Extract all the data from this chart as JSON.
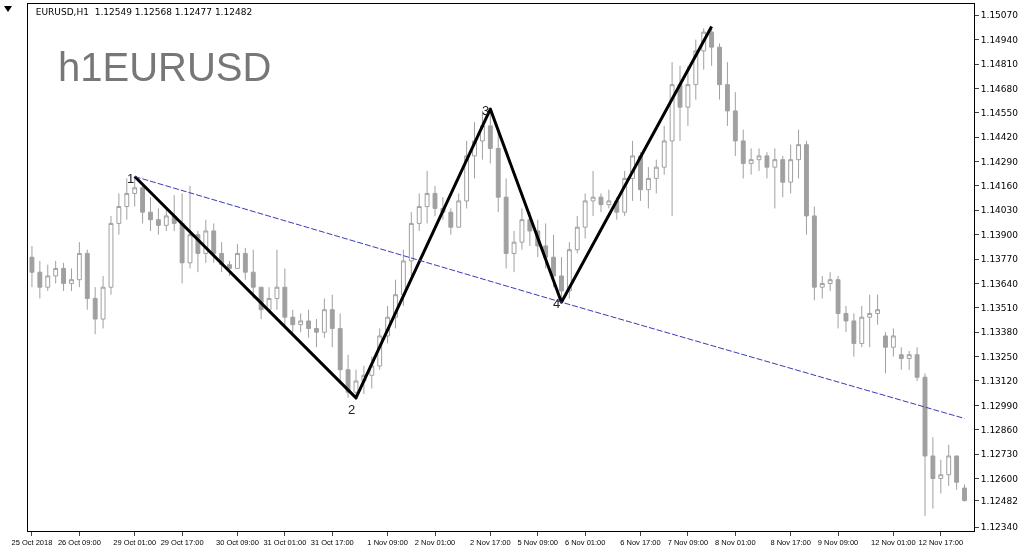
{
  "chart_data": {
    "type": "candlestick",
    "title": "EURUSD,H1  1.12549 1.12568 1.12477 1.12482",
    "color": "#a0a0a0",
    "categories": [
      "25 Oct 2018",
      null,
      null,
      null,
      null,
      null,
      "26 Oct 09:00",
      null,
      null,
      null,
      null,
      null,
      null,
      "29 Oct 01:00",
      null,
      null,
      null,
      null,
      null,
      "29 Oct 17:00",
      null,
      null,
      null,
      null,
      null,
      null,
      "30 Oct 09:00",
      null,
      null,
      null,
      null,
      null,
      "31 Oct 01:00",
      null,
      null,
      null,
      null,
      null,
      "31 Oct 17:00",
      null,
      null,
      null,
      null,
      null,
      null,
      "1 Nov 09:00",
      null,
      null,
      null,
      null,
      null,
      "2 Nov 01:00",
      null,
      null,
      null,
      null,
      null,
      null,
      "2 Nov 17:00",
      null,
      null,
      null,
      null,
      null,
      "5 Nov 09:00",
      null,
      null,
      null,
      null,
      null,
      "6 Nov 01:00",
      null,
      null,
      null,
      null,
      null,
      null,
      "6 Nov 17:00",
      null,
      null,
      null,
      null,
      null,
      "7 Nov 09:00",
      null,
      null,
      null,
      null,
      null,
      "8 Nov 01:00",
      null,
      null,
      null,
      null,
      null,
      null,
      "8 Nov 17:00",
      null,
      null,
      null,
      null,
      null,
      "9 Nov 09:00",
      null,
      null,
      null,
      null,
      null,
      null,
      "12 Nov 01:00",
      null,
      null,
      null,
      null,
      null,
      "12 Nov 17:00",
      null,
      null,
      null
    ],
    "ohlc": [
      [
        1.1378,
        1.1384,
        1.1362,
        1.137
      ],
      [
        1.137,
        1.1376,
        1.1356,
        1.1362
      ],
      [
        1.1362,
        1.1374,
        1.136,
        1.1368
      ],
      [
        1.1368,
        1.1376,
        1.1364,
        1.1372
      ],
      [
        1.1372,
        1.1375,
        1.136,
        1.1364
      ],
      [
        1.1364,
        1.1372,
        1.136,
        1.1366
      ],
      [
        1.1366,
        1.1386,
        1.1362,
        1.138
      ],
      [
        1.138,
        1.1382,
        1.135,
        1.1356
      ],
      [
        1.1356,
        1.1362,
        1.1337,
        1.1345
      ],
      [
        1.1345,
        1.1368,
        1.134,
        1.1362
      ],
      [
        1.1362,
        1.14,
        1.1358,
        1.1396
      ],
      [
        1.1396,
        1.1412,
        1.139,
        1.1405
      ],
      [
        1.1405,
        1.142,
        1.1398,
        1.1412
      ],
      [
        1.1412,
        1.1421,
        1.1405,
        1.1415
      ],
      [
        1.1415,
        1.1416,
        1.1396,
        1.1402
      ],
      [
        1.1402,
        1.141,
        1.1392,
        1.1398
      ],
      [
        1.1398,
        1.1404,
        1.139,
        1.1395
      ],
      [
        1.1395,
        1.1404,
        1.1392,
        1.14
      ],
      [
        1.14,
        1.1411,
        1.1392,
        1.1396
      ],
      [
        1.1396,
        1.1412,
        1.1364,
        1.1375
      ],
      [
        1.1375,
        1.1416,
        1.1372,
        1.139
      ],
      [
        1.139,
        1.1392,
        1.137,
        1.138
      ],
      [
        1.138,
        1.1398,
        1.1375,
        1.1392
      ],
      [
        1.1392,
        1.1396,
        1.1375,
        1.138
      ],
      [
        1.138,
        1.1386,
        1.137,
        1.1374
      ],
      [
        1.1374,
        1.1376,
        1.1368,
        1.1372
      ],
      [
        1.1372,
        1.1385,
        1.1372,
        1.138
      ],
      [
        1.138,
        1.1383,
        1.1366,
        1.137
      ],
      [
        1.137,
        1.1382,
        1.1356,
        1.1362
      ],
      [
        1.1362,
        1.1362,
        1.1345,
        1.135
      ],
      [
        1.135,
        1.1362,
        1.1348,
        1.1356
      ],
      [
        1.1356,
        1.1382,
        1.135,
        1.1362
      ],
      [
        1.1362,
        1.1372,
        1.134,
        1.1346
      ],
      [
        1.1346,
        1.135,
        1.1338,
        1.1342
      ],
      [
        1.1342,
        1.1348,
        1.1338,
        1.1344
      ],
      [
        1.1344,
        1.135,
        1.1335,
        1.134
      ],
      [
        1.134,
        1.1345,
        1.133,
        1.1338
      ],
      [
        1.1338,
        1.1356,
        1.1335,
        1.135
      ],
      [
        1.135,
        1.1358,
        1.133,
        1.134
      ],
      [
        1.134,
        1.1348,
        1.1312,
        1.1318
      ],
      [
        1.1318,
        1.1326,
        1.1303,
        1.1306
      ],
      [
        1.1306,
        1.1318,
        1.1302,
        1.1312
      ],
      [
        1.1312,
        1.132,
        1.1305,
        1.1315
      ],
      [
        1.1315,
        1.1325,
        1.1308,
        1.132
      ],
      [
        1.132,
        1.134,
        1.1318,
        1.1336
      ],
      [
        1.1336,
        1.1352,
        1.1332,
        1.1346
      ],
      [
        1.1346,
        1.1366,
        1.134,
        1.1358
      ],
      [
        1.1358,
        1.1382,
        1.1352,
        1.1376
      ],
      [
        1.1376,
        1.1402,
        1.1368,
        1.1396
      ],
      [
        1.1396,
        1.1412,
        1.1392,
        1.1405
      ],
      [
        1.1405,
        1.1424,
        1.1396,
        1.1412
      ],
      [
        1.1412,
        1.1416,
        1.14,
        1.1404
      ],
      [
        1.1404,
        1.141,
        1.1398,
        1.1402
      ],
      [
        1.1402,
        1.1404,
        1.139,
        1.1394
      ],
      [
        1.1394,
        1.1412,
        1.1394,
        1.1408
      ],
      [
        1.1408,
        1.144,
        1.1404,
        1.1432
      ],
      [
        1.1432,
        1.145,
        1.142,
        1.144
      ],
      [
        1.144,
        1.1456,
        1.143,
        1.1448
      ],
      [
        1.1448,
        1.1455,
        1.1428,
        1.1436
      ],
      [
        1.1436,
        1.1446,
        1.1402,
        1.141
      ],
      [
        1.141,
        1.142,
        1.1372,
        1.138
      ],
      [
        1.138,
        1.1392,
        1.137,
        1.1386
      ],
      [
        1.1386,
        1.1404,
        1.1382,
        1.1398
      ],
      [
        1.1398,
        1.1402,
        1.1384,
        1.1392
      ],
      [
        1.1392,
        1.1398,
        1.1378,
        1.1384
      ],
      [
        1.1384,
        1.1396,
        1.1372,
        1.1378
      ],
      [
        1.1378,
        1.139,
        1.1362,
        1.1368
      ],
      [
        1.1368,
        1.1378,
        1.1355,
        1.136
      ],
      [
        1.136,
        1.1386,
        1.1356,
        1.1382
      ],
      [
        1.1382,
        1.14,
        1.138,
        1.1394
      ],
      [
        1.1394,
        1.1412,
        1.1388,
        1.1408
      ],
      [
        1.1408,
        1.1424,
        1.14,
        1.141
      ],
      [
        1.141,
        1.1412,
        1.1402,
        1.1406
      ],
      [
        1.1406,
        1.1414,
        1.1404,
        1.1408
      ],
      [
        1.1408,
        1.141,
        1.1398,
        1.1402
      ],
      [
        1.1402,
        1.1424,
        1.14,
        1.142
      ],
      [
        1.142,
        1.144,
        1.1408,
        1.1432
      ],
      [
        1.1432,
        1.1434,
        1.1408,
        1.1414
      ],
      [
        1.1414,
        1.1426,
        1.1404,
        1.142
      ],
      [
        1.142,
        1.143,
        1.1412,
        1.1426
      ],
      [
        1.1426,
        1.1448,
        1.1422,
        1.144
      ],
      [
        1.144,
        1.1482,
        1.14,
        1.147
      ],
      [
        1.147,
        1.148,
        1.144,
        1.1458
      ],
      [
        1.1458,
        1.148,
        1.1448,
        1.147
      ],
      [
        1.147,
        1.1494,
        1.1462,
        1.1488
      ],
      [
        1.1488,
        1.15,
        1.1478,
        1.1498
      ],
      [
        1.1498,
        1.15,
        1.148,
        1.149
      ],
      [
        1.149,
        1.1492,
        1.1462,
        1.147
      ],
      [
        1.147,
        1.1482,
        1.1448,
        1.1456
      ],
      [
        1.1456,
        1.1466,
        1.1432,
        1.144
      ],
      [
        1.144,
        1.1446,
        1.142,
        1.1428
      ],
      [
        1.1428,
        1.1436,
        1.1422,
        1.143
      ],
      [
        1.143,
        1.1436,
        1.1424,
        1.1432
      ],
      [
        1.1432,
        1.1434,
        1.142,
        1.1426
      ],
      [
        1.1426,
        1.1436,
        1.1404,
        1.143
      ],
      [
        1.143,
        1.1432,
        1.141,
        1.1418
      ],
      [
        1.1418,
        1.1438,
        1.1412,
        1.143
      ],
      [
        1.143,
        1.1446,
        1.142,
        1.1438
      ],
      [
        1.1438,
        1.144,
        1.139,
        1.14
      ],
      [
        1.14,
        1.1405,
        1.1355,
        1.1362
      ],
      [
        1.1362,
        1.1368,
        1.1356,
        1.1364
      ],
      [
        1.1364,
        1.137,
        1.136,
        1.1366
      ],
      [
        1.1366,
        1.1368,
        1.134,
        1.1348
      ],
      [
        1.1348,
        1.1352,
        1.1338,
        1.1344
      ],
      [
        1.1344,
        1.1348,
        1.1325,
        1.1332
      ],
      [
        1.1332,
        1.1352,
        1.133,
        1.1346
      ],
      [
        1.1346,
        1.1358,
        1.133,
        1.1348
      ],
      [
        1.1348,
        1.1358,
        1.1342,
        1.135
      ],
      [
        1.1336,
        1.1338,
        1.1316,
        1.133
      ],
      [
        1.133,
        1.134,
        1.1325,
        1.1336
      ],
      [
        1.1326,
        1.133,
        1.1318,
        1.1324
      ],
      [
        1.1324,
        1.1328,
        1.1318,
        1.1326
      ],
      [
        1.1326,
        1.133,
        1.1312,
        1.1314
      ],
      [
        1.1314,
        1.1316,
        1.124,
        1.1272
      ],
      [
        1.1272,
        1.1282,
        1.1244,
        1.126
      ],
      [
        1.126,
        1.127,
        1.1252,
        1.1262
      ],
      [
        1.1262,
        1.1278,
        1.1256,
        1.1272
      ],
      [
        1.1272,
        1.1272,
        1.1254,
        1.1258
      ],
      [
        1.12549,
        1.12568,
        1.12477,
        1.12482
      ]
    ],
    "series": [
      {
        "type": "line",
        "color": "#000000",
        "line_style": "solid",
        "values": [
          null,
          null,
          null,
          null,
          null,
          null,
          null,
          null,
          null,
          null,
          null,
          null,
          null,
          1.1421,
          null,
          null,
          null,
          null,
          null,
          null,
          null,
          null,
          null,
          null,
          null,
          null,
          null,
          null,
          null,
          null,
          null,
          null,
          null,
          null,
          null,
          null,
          null,
          null,
          null,
          null,
          null,
          1.1303,
          null,
          null,
          null,
          null,
          null,
          null,
          null,
          null,
          null,
          null,
          null,
          null,
          null,
          null,
          null,
          null,
          1.1457,
          null,
          null,
          null,
          null,
          null,
          null,
          null,
          null,
          1.1354,
          null,
          null,
          null,
          null,
          null,
          null,
          null,
          null,
          null,
          null,
          null,
          null,
          null,
          null,
          null,
          null,
          null,
          null,
          1.1501,
          null,
          null,
          null,
          null,
          null,
          null,
          null,
          null,
          null,
          null,
          null,
          null,
          null,
          null,
          null,
          null,
          null,
          null,
          null,
          null,
          null,
          null,
          null,
          null,
          null,
          null,
          null,
          null,
          null,
          null,
          null,
          null
        ]
      },
      {
        "type": "line",
        "color": "#3c3cb4",
        "line_style": "dashed",
        "values": [
          null,
          null,
          null,
          null,
          null,
          null,
          null,
          null,
          null,
          null,
          null,
          null,
          null,
          1.1421,
          null,
          null,
          null,
          null,
          null,
          null,
          null,
          null,
          null,
          null,
          null,
          null,
          null,
          null,
          null,
          null,
          null,
          null,
          null,
          null,
          null,
          null,
          null,
          null,
          null,
          null,
          null,
          null,
          null,
          null,
          null,
          null,
          null,
          null,
          null,
          null,
          null,
          null,
          null,
          null,
          null,
          null,
          null,
          null,
          null,
          null,
          null,
          null,
          null,
          null,
          null,
          null,
          null,
          1.1354,
          null,
          null,
          null,
          null,
          null,
          null,
          null,
          null,
          null,
          null,
          null,
          null,
          null,
          null,
          null,
          null,
          null,
          null,
          null,
          null,
          null,
          null,
          null,
          null,
          null,
          null,
          null,
          null,
          null,
          null,
          null,
          null,
          null,
          null,
          null,
          null,
          null,
          null,
          null,
          null,
          null,
          null,
          null,
          null,
          null,
          null,
          null,
          null,
          null,
          null,
          1.1292
        ]
      }
    ],
    "annotations": [
      {
        "text": "1",
        "y": 1.1421
      },
      {
        "text": "2",
        "y": 1.1303
      },
      {
        "text": "3",
        "y": 1.1457
      },
      {
        "text": "4",
        "y": 1.1354
      },
      "h1EURUSD"
    ],
    "ylim": [
      1.1232,
      1.1513
    ],
    "yticks": [
      {
        "value": 1.1234,
        "label": "1.12340"
      },
      {
        "value": 1.12482,
        "label": "1.12482"
      },
      {
        "value": 1.126,
        "label": "1.12600"
      },
      {
        "value": 1.1273,
        "label": "1.12730"
      },
      {
        "value": 1.1286,
        "label": "1.12860"
      },
      {
        "value": 1.1299,
        "label": "1.12990"
      },
      {
        "value": 1.1312,
        "label": "1.13120"
      },
      {
        "value": 1.1325,
        "label": "1.13250"
      },
      {
        "value": 1.1338,
        "label": "1.13380"
      },
      {
        "value": 1.1351,
        "label": "1.13510"
      },
      {
        "value": 1.1364,
        "label": "1.13640"
      },
      {
        "value": 1.1377,
        "label": "1.13770"
      },
      {
        "value": 1.139,
        "label": "1.13900"
      },
      {
        "value": 1.1403,
        "label": "1.14030"
      },
      {
        "value": 1.1416,
        "label": "1.14160"
      },
      {
        "value": 1.1429,
        "label": "1.14290"
      },
      {
        "value": 1.1442,
        "label": "1.14420"
      },
      {
        "value": 1.1455,
        "label": "1.14550"
      },
      {
        "value": 1.1468,
        "label": "1.14680"
      },
      {
        "value": 1.1481,
        "label": "1.14810"
      },
      {
        "value": 1.1494,
        "label": "1.14940"
      },
      {
        "value": 1.1507,
        "label": "1.15070"
      }
    ],
    "grid": false
  }
}
